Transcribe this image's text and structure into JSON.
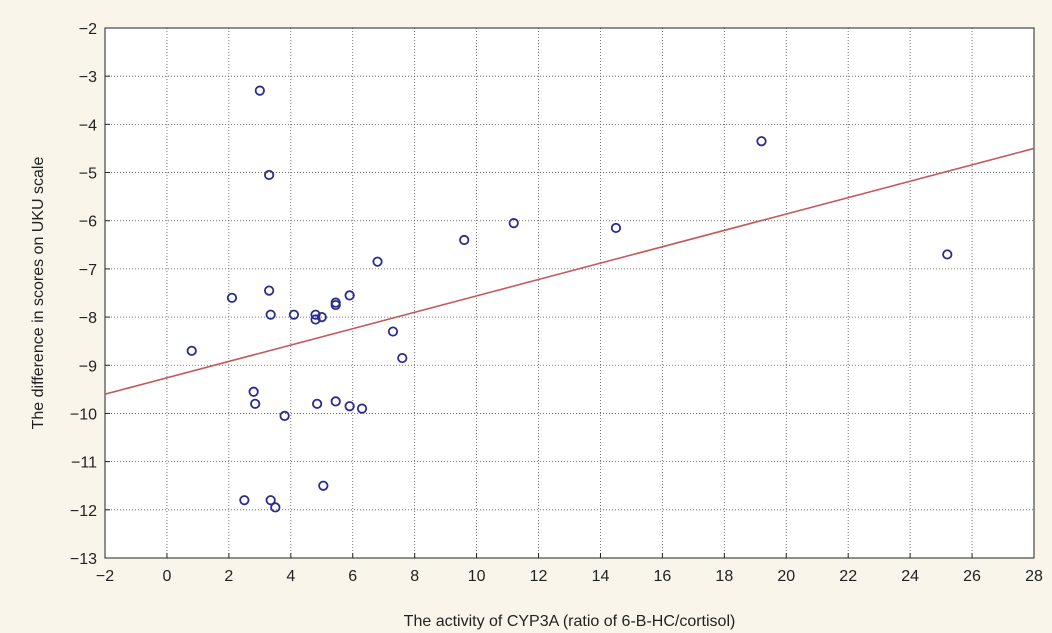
{
  "chart_data": {
    "type": "scatter",
    "xlabel": "The activity of CYP3A (ratio of 6-B-HC/cortisol)",
    "ylabel": "The difference in scores on UKU scale",
    "xlim": [
      -2,
      28
    ],
    "ylim": [
      -13,
      -2
    ],
    "x_ticks": [
      -2,
      0,
      2,
      4,
      6,
      8,
      10,
      12,
      14,
      16,
      18,
      20,
      22,
      24,
      26,
      28
    ],
    "y_ticks": [
      -2,
      -3,
      -4,
      -5,
      -6,
      -7,
      -8,
      -9,
      -10,
      -11,
      -12,
      -13
    ],
    "x_tick_labels": [
      "−2",
      "0",
      "2",
      "4",
      "6",
      "8",
      "10",
      "12",
      "14",
      "16",
      "18",
      "20",
      "22",
      "24",
      "26",
      "28"
    ],
    "y_tick_labels": [
      "−2",
      "−3",
      "−4",
      "−5",
      "−6",
      "−7",
      "−8",
      "−9",
      "−10",
      "−11",
      "−12",
      "−13"
    ],
    "grid": true,
    "points": [
      {
        "x": 0.8,
        "y": -8.7
      },
      {
        "x": 2.1,
        "y": -7.6
      },
      {
        "x": 2.5,
        "y": -11.8
      },
      {
        "x": 2.8,
        "y": -9.55
      },
      {
        "x": 2.85,
        "y": -9.8
      },
      {
        "x": 3.0,
        "y": -3.3
      },
      {
        "x": 3.3,
        "y": -5.05
      },
      {
        "x": 3.3,
        "y": -7.45
      },
      {
        "x": 3.35,
        "y": -7.95
      },
      {
        "x": 3.35,
        "y": -11.8
      },
      {
        "x": 3.5,
        "y": -11.95
      },
      {
        "x": 3.8,
        "y": -10.05
      },
      {
        "x": 4.1,
        "y": -7.95
      },
      {
        "x": 4.8,
        "y": -7.95
      },
      {
        "x": 4.8,
        "y": -8.05
      },
      {
        "x": 4.85,
        "y": -9.8
      },
      {
        "x": 5.0,
        "y": -8.0
      },
      {
        "x": 5.05,
        "y": -11.5
      },
      {
        "x": 5.45,
        "y": -7.7
      },
      {
        "x": 5.45,
        "y": -7.75
      },
      {
        "x": 5.45,
        "y": -9.75
      },
      {
        "x": 5.9,
        "y": -7.55
      },
      {
        "x": 5.9,
        "y": -9.85
      },
      {
        "x": 6.3,
        "y": -9.9
      },
      {
        "x": 6.8,
        "y": -6.85
      },
      {
        "x": 7.3,
        "y": -8.3
      },
      {
        "x": 7.6,
        "y": -8.85
      },
      {
        "x": 9.6,
        "y": -6.4
      },
      {
        "x": 11.2,
        "y": -6.05
      },
      {
        "x": 14.5,
        "y": -6.15
      },
      {
        "x": 19.2,
        "y": -4.35
      },
      {
        "x": 25.2,
        "y": -6.7
      }
    ],
    "fit_line": {
      "x": [
        -2,
        28
      ],
      "y": [
        -9.6,
        -4.5
      ]
    },
    "colors": {
      "marker": "#2b2b8f",
      "fit_line": "#c25a5a",
      "grid": "#555555",
      "plot_background": "#ffffff",
      "page_background": "#f9f5ea"
    }
  }
}
